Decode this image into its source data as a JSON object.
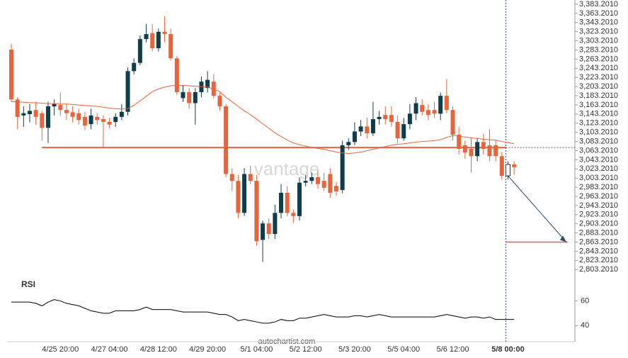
{
  "chart_data": {
    "type": "candlestick",
    "watermark": "vantage",
    "source": "autochartist.com",
    "up_color": "#0f3d4c",
    "down_color": "#e8643c",
    "last_candle_hollow": true,
    "categories": [
      null,
      null,
      null,
      null,
      null,
      null,
      null,
      null,
      "4/25 20:00",
      null,
      null,
      null,
      null,
      null,
      null,
      null,
      "4/27 04:00",
      null,
      null,
      null,
      null,
      null,
      null,
      null,
      "4/28 12:00",
      null,
      null,
      null,
      null,
      null,
      null,
      null,
      "4/29 20:00",
      null,
      null,
      null,
      null,
      null,
      null,
      null,
      "5/1 04:00",
      null,
      null,
      null,
      null,
      null,
      null,
      null,
      "5/2 12:00",
      null,
      null,
      null,
      null,
      null,
      null,
      null,
      "5/3 20:00",
      null,
      null,
      null,
      null,
      null,
      null,
      null,
      "5/5 04:00",
      null,
      null,
      null,
      null,
      null,
      null,
      null,
      "5/6 12:00",
      null,
      null,
      null,
      null,
      null,
      null,
      null,
      null,
      "5/8 00:00",
      null
    ],
    "highlight_category": 81,
    "open": [
      3284,
      3175,
      3140,
      3143,
      3152,
      3145,
      3113,
      3160,
      3163,
      3152,
      3147,
      3145,
      3137,
      3121,
      3137,
      3132,
      3126,
      3126,
      3137,
      3148,
      3237,
      3255,
      3307,
      3320,
      3287,
      3323,
      3318,
      3265,
      3178,
      3191,
      3167,
      3191,
      3200,
      3214,
      3183,
      3160,
      3012,
      2997,
      2927,
      3012,
      2997,
      2868,
      2904,
      2881,
      2927,
      2971,
      2927,
      2920,
      2993,
      2997,
      3005,
      2997,
      3012,
      2986,
      2977,
      3075,
      3082,
      3105,
      3116,
      3101,
      3132,
      3141,
      3141,
      3126,
      3090,
      3121,
      3144,
      3163,
      3152,
      3152,
      3144,
      3183,
      3152,
      3098,
      3075,
      3067,
      3051,
      3082,
      3075,
      3075,
      3051,
      3008,
      3033
    ],
    "high": [
      3297,
      3180,
      3160,
      3165,
      3170,
      3150,
      3170,
      3175,
      3190,
      3165,
      3160,
      3155,
      3148,
      3155,
      3145,
      3140,
      3135,
      3145,
      3165,
      3245,
      3265,
      3315,
      3340,
      3340,
      3330,
      3357,
      3330,
      3270,
      3205,
      3200,
      3200,
      3225,
      3237,
      3230,
      3190,
      3165,
      3025,
      3010,
      3025,
      3030,
      3010,
      2910,
      2915,
      2945,
      2990,
      2985,
      2935,
      3005,
      3010,
      3015,
      3020,
      3015,
      3025,
      2995,
      3085,
      3090,
      3125,
      3130,
      3135,
      3170,
      3150,
      3160,
      3160,
      3140,
      3135,
      3165,
      3180,
      3175,
      3165,
      3170,
      3190,
      3220,
      3160,
      3115,
      3085,
      3090,
      3090,
      3100,
      3110,
      3085,
      3060,
      3040,
      3040
    ],
    "low": [
      3170,
      3110,
      3115,
      3125,
      3120,
      3085,
      3080,
      3140,
      3140,
      3130,
      3125,
      3120,
      3108,
      3110,
      3120,
      3070,
      3112,
      3115,
      3130,
      3140,
      3230,
      3250,
      3300,
      3280,
      3280,
      3300,
      3260,
      3185,
      3170,
      3155,
      3120,
      3180,
      3190,
      3178,
      3150,
      3005,
      2975,
      2915,
      2920,
      2990,
      2855,
      2820,
      2870,
      2870,
      2915,
      2920,
      2905,
      2910,
      2985,
      2990,
      2980,
      2975,
      2960,
      2965,
      2970,
      3065,
      3075,
      3095,
      3090,
      3095,
      3120,
      3120,
      3115,
      3080,
      3085,
      3110,
      3130,
      3140,
      3130,
      3135,
      3130,
      3145,
      3085,
      3055,
      3045,
      3015,
      3040,
      3055,
      3040,
      3040,
      3000,
      3000,
      3010
    ],
    "close": [
      3175,
      3137,
      3145,
      3150,
      3137,
      3113,
      3160,
      3165,
      3152,
      3145,
      3137,
      3130,
      3118,
      3140,
      3130,
      3126,
      3120,
      3137,
      3148,
      3237,
      3255,
      3307,
      3318,
      3287,
      3323,
      3318,
      3265,
      3191,
      3191,
      3167,
      3191,
      3214,
      3218,
      3183,
      3160,
      3012,
      2997,
      2927,
      3012,
      2997,
      2865,
      2904,
      2881,
      2927,
      2971,
      2927,
      2920,
      2993,
      2997,
      3005,
      2990,
      2982,
      2971,
      2974,
      3075,
      3082,
      3105,
      3116,
      3101,
      3132,
      3137,
      3132,
      3126,
      3090,
      3121,
      3144,
      3167,
      3148,
      3141,
      3144,
      3183,
      3152,
      3098,
      3067,
      3059,
      3051,
      3082,
      3067,
      3051,
      3051,
      3008,
      3033,
      3027
    ],
    "moving_average": {
      "color": "#e8643c",
      "values": [
        3170,
        3170,
        3169,
        3168,
        3168,
        3167,
        3166,
        3166,
        3165,
        3165,
        3164,
        3163,
        3162,
        3161,
        3160,
        3158,
        3156,
        3155,
        3154,
        3155,
        3162,
        3172,
        3182,
        3192,
        3198,
        3202,
        3205,
        3206,
        3206,
        3205,
        3204,
        3203,
        3202,
        3198,
        3192,
        3180,
        3170,
        3160,
        3150,
        3142,
        3132,
        3122,
        3112,
        3102,
        3094,
        3086,
        3080,
        3076,
        3073,
        3070,
        3068,
        3066,
        3063,
        3060,
        3058,
        3057,
        3058,
        3060,
        3063,
        3066,
        3069,
        3072,
        3075,
        3077,
        3078,
        3080,
        3082,
        3083,
        3084,
        3085,
        3087,
        3092,
        3096,
        3095,
        3093,
        3091,
        3090,
        3088,
        3087,
        3086,
        3083,
        3081,
        3078
      ]
    },
    "support_level": 3070,
    "target_level": 2863.201,
    "ylim": [
      2788,
      3392.5
    ],
    "yticks": [
      {
        "value": 3383.201,
        "label": "3,383.2010"
      },
      {
        "value": 3363.201,
        "label": "3,363.2010"
      },
      {
        "value": 3343.201,
        "label": "3,343.2010"
      },
      {
        "value": 3323.201,
        "label": "3,323.2010"
      },
      {
        "value": 3303.201,
        "label": "3,303.2010"
      },
      {
        "value": 3283.201,
        "label": "3,283.2010"
      },
      {
        "value": 3263.201,
        "label": "3,263.2010"
      },
      {
        "value": 3243.201,
        "label": "3,243.2010"
      },
      {
        "value": 3223.201,
        "label": "3,223.2010"
      },
      {
        "value": 3203.201,
        "label": "3,203.2010"
      },
      {
        "value": 3183.201,
        "label": "3,183.2010"
      },
      {
        "value": 3163.201,
        "label": "3,163.2010"
      },
      {
        "value": 3143.201,
        "label": "3,143.2010"
      },
      {
        "value": 3123.201,
        "label": "3,123.2010"
      },
      {
        "value": 3103.201,
        "label": "3,103.2010"
      },
      {
        "value": 3083.201,
        "label": "3,083.2010"
      },
      {
        "value": 3063.201,
        "label": "3,063.2010"
      },
      {
        "value": 3043.201,
        "label": "3,043.2010"
      },
      {
        "value": 3023.201,
        "label": "3,023.2010"
      },
      {
        "value": 3003.201,
        "label": "3,003.2010"
      },
      {
        "value": 2983.201,
        "label": "2,983.2010"
      },
      {
        "value": 2963.201,
        "label": "2,963.2010"
      },
      {
        "value": 2943.201,
        "label": "2,943.2010"
      },
      {
        "value": 2923.201,
        "label": "2,923.2010"
      },
      {
        "value": 2903.201,
        "label": "2,903.2010"
      },
      {
        "value": 2883.201,
        "label": "2,883.2010"
      },
      {
        "value": 2863.201,
        "label": "2,863.2010"
      },
      {
        "value": 2843.201,
        "label": "2,843.2010"
      },
      {
        "value": 2823.201,
        "label": "2,823.2010"
      },
      {
        "value": 2803.201,
        "label": "2,803.2010"
      }
    ],
    "rsi": {
      "title": "RSI",
      "color": "#000000",
      "values": [
        59,
        59,
        59,
        59,
        58,
        56,
        59,
        61,
        60,
        58,
        57,
        56,
        54,
        52,
        51,
        50,
        50,
        52,
        52,
        52,
        52,
        53,
        55,
        53,
        53,
        53,
        53,
        52,
        51,
        51,
        51,
        51,
        51,
        50,
        49,
        49,
        47,
        44,
        45,
        44,
        43,
        42,
        42,
        43,
        45,
        44,
        44,
        46,
        46,
        47,
        48,
        49,
        48,
        47,
        47,
        47,
        48,
        48,
        47,
        48,
        49,
        48,
        47,
        47,
        47,
        47,
        47,
        47,
        47,
        47,
        48,
        49,
        48,
        47,
        46,
        47,
        47,
        46,
        47,
        45,
        45,
        45,
        45
      ],
      "ylim": [
        31,
        74
      ],
      "yticks": [
        40,
        60
      ]
    }
  }
}
